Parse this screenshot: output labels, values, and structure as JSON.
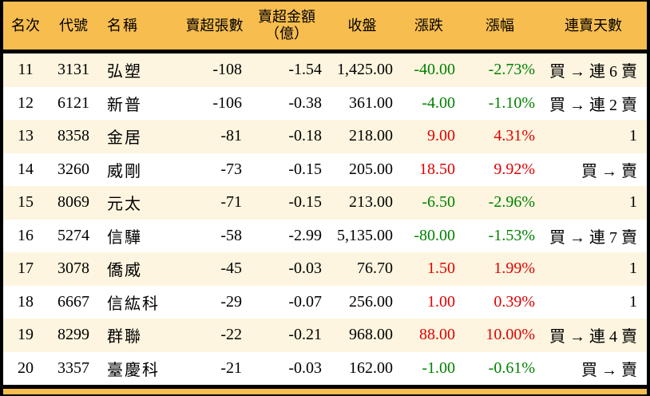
{
  "colors": {
    "header_bg": "#f7bd4f",
    "row_bg": "#ffffff",
    "row_alt_bg": "#fdf5df",
    "border": "#000000",
    "up_text": "#e00000",
    "down_text": "#008000",
    "text": "#000000"
  },
  "table": {
    "columns": [
      {
        "key": "rank",
        "label": "名次"
      },
      {
        "key": "code",
        "label": "代號"
      },
      {
        "key": "name",
        "label": "名稱"
      },
      {
        "key": "sell_volume",
        "label": "賣超張數"
      },
      {
        "key": "sell_amount",
        "label": "賣超金額",
        "label_line2": "（億）"
      },
      {
        "key": "close",
        "label": "收盤"
      },
      {
        "key": "change",
        "label": "漲跌"
      },
      {
        "key": "change_pct",
        "label": "漲幅"
      },
      {
        "key": "streak",
        "label": "連賣天數"
      }
    ],
    "rows": [
      {
        "rank": "11",
        "code": "3131",
        "name": "弘塑",
        "sell_volume": "-108",
        "sell_amount": "-1.54",
        "close": "1,425.00",
        "change": "-40.00",
        "change_pct": "-2.73%",
        "streak": "買 → 連 6 賣",
        "trend": "down"
      },
      {
        "rank": "12",
        "code": "6121",
        "name": "新普",
        "sell_volume": "-106",
        "sell_amount": "-0.38",
        "close": "361.00",
        "change": "-4.00",
        "change_pct": "-1.10%",
        "streak": "買 → 連 2 賣",
        "trend": "down"
      },
      {
        "rank": "13",
        "code": "8358",
        "name": "金居",
        "sell_volume": "-81",
        "sell_amount": "-0.18",
        "close": "218.00",
        "change": "9.00",
        "change_pct": "4.31%",
        "streak": "1",
        "trend": "up"
      },
      {
        "rank": "14",
        "code": "3260",
        "name": "威剛",
        "sell_volume": "-73",
        "sell_amount": "-0.15",
        "close": "205.00",
        "change": "18.50",
        "change_pct": "9.92%",
        "streak": "買 → 賣",
        "trend": "up"
      },
      {
        "rank": "15",
        "code": "8069",
        "name": "元太",
        "sell_volume": "-71",
        "sell_amount": "-0.15",
        "close": "213.00",
        "change": "-6.50",
        "change_pct": "-2.96%",
        "streak": "1",
        "trend": "down"
      },
      {
        "rank": "16",
        "code": "5274",
        "name": "信驊",
        "sell_volume": "-58",
        "sell_amount": "-2.99",
        "close": "5,135.00",
        "change": "-80.00",
        "change_pct": "-1.53%",
        "streak": "買 → 連 7 賣",
        "trend": "down"
      },
      {
        "rank": "17",
        "code": "3078",
        "name": "僑威",
        "sell_volume": "-45",
        "sell_amount": "-0.03",
        "close": "76.70",
        "change": "1.50",
        "change_pct": "1.99%",
        "streak": "1",
        "trend": "up"
      },
      {
        "rank": "18",
        "code": "6667",
        "name": "信紘科",
        "sell_volume": "-29",
        "sell_amount": "-0.07",
        "close": "256.00",
        "change": "1.00",
        "change_pct": "0.39%",
        "streak": "1",
        "trend": "up"
      },
      {
        "rank": "19",
        "code": "8299",
        "name": "群聯",
        "sell_volume": "-22",
        "sell_amount": "-0.21",
        "close": "968.00",
        "change": "88.00",
        "change_pct": "10.00%",
        "streak": "買 → 連 4 賣",
        "trend": "up"
      },
      {
        "rank": "20",
        "code": "3357",
        "name": "臺慶科",
        "sell_volume": "-21",
        "sell_amount": "-0.03",
        "close": "162.00",
        "change": "-1.00",
        "change_pct": "-0.61%",
        "streak": "買 → 賣",
        "trend": "down"
      }
    ]
  }
}
